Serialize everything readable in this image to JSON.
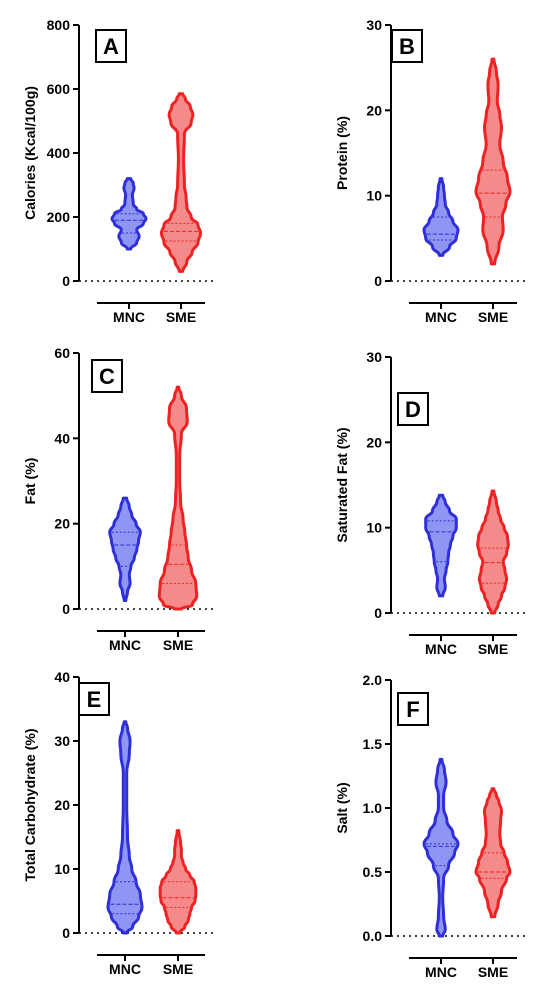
{
  "chart_data": [
    {
      "type": "violin",
      "panel_letter": "A",
      "ylabel": "Calories (Kcal/100g)",
      "ylim": [
        0,
        800
      ],
      "yticks": [
        "0",
        "200",
        "400",
        "600",
        "800"
      ],
      "categories": [
        "MNC",
        "SME"
      ],
      "series": [
        {
          "category": "MNC",
          "color": "#2f2fd8",
          "min": 100,
          "max": 320,
          "median": 190,
          "q1": 150,
          "q3": 210,
          "profile": [
            [
              100,
              2
            ],
            [
              120,
              9
            ],
            [
              140,
              12
            ],
            [
              160,
              9
            ],
            [
              180,
              17
            ],
            [
              195,
              20
            ],
            [
              210,
              17
            ],
            [
              225,
              9
            ],
            [
              240,
              5
            ],
            [
              270,
              4
            ],
            [
              290,
              6
            ],
            [
              305,
              5
            ],
            [
              320,
              2
            ]
          ]
        },
        {
          "category": "SME",
          "color": "#ee2222",
          "min": 30,
          "max": 585,
          "median": 155,
          "q1": 125,
          "q3": 180,
          "profile": [
            [
              30,
              2
            ],
            [
              60,
              7
            ],
            [
              90,
              13
            ],
            [
              120,
              20
            ],
            [
              150,
              23
            ],
            [
              175,
              20
            ],
            [
              200,
              12
            ],
            [
              230,
              7
            ],
            [
              260,
              6
            ],
            [
              300,
              4
            ],
            [
              380,
              3
            ],
            [
              460,
              4
            ],
            [
              495,
              12
            ],
            [
              520,
              14
            ],
            [
              545,
              11
            ],
            [
              570,
              5
            ],
            [
              585,
              2
            ]
          ]
        }
      ]
    },
    {
      "type": "violin",
      "panel_letter": "B",
      "ylabel": "Protein (%)",
      "ylim": [
        0,
        30
      ],
      "yticks": [
        "0",
        "10",
        "20",
        "30"
      ],
      "categories": [
        "MNC",
        "SME"
      ],
      "series": [
        {
          "category": "MNC",
          "color": "#2f2fd8",
          "min": 3,
          "max": 12,
          "median": 5.5,
          "q1": 4.8,
          "q3": 7.5,
          "profile": [
            [
              3,
              2
            ],
            [
              4,
              10
            ],
            [
              5,
              18
            ],
            [
              6,
              20
            ],
            [
              7,
              14
            ],
            [
              8,
              9
            ],
            [
              9,
              5
            ],
            [
              10,
              4
            ],
            [
              11,
              3
            ],
            [
              12,
              1
            ]
          ]
        },
        {
          "category": "SME",
          "color": "#ee2222",
          "min": 2,
          "max": 26,
          "median": 10.3,
          "q1": 7.5,
          "q3": 13,
          "profile": [
            [
              2,
              2
            ],
            [
              4,
              7
            ],
            [
              6,
              12
            ],
            [
              7.5,
              11
            ],
            [
              9,
              15
            ],
            [
              10.5,
              20
            ],
            [
              12,
              17
            ],
            [
              14,
              12
            ],
            [
              16,
              8
            ],
            [
              18,
              10
            ],
            [
              19.5,
              8
            ],
            [
              21,
              5
            ],
            [
              23,
              6
            ],
            [
              24.5,
              4
            ],
            [
              26,
              1
            ]
          ]
        }
      ]
    },
    {
      "type": "violin",
      "panel_letter": "C",
      "ylabel": "Fat (%)",
      "ylim": [
        0,
        60
      ],
      "yticks": [
        "0",
        "20",
        "40",
        "60"
      ],
      "categories": [
        "MNC",
        "SME"
      ],
      "series": [
        {
          "category": "MNC",
          "color": "#2f2fd8",
          "min": 2,
          "max": 26,
          "median": 15,
          "q1": 10,
          "q3": 18,
          "profile": [
            [
              2,
              1
            ],
            [
              4,
              3
            ],
            [
              6,
              6
            ],
            [
              8,
              5
            ],
            [
              10,
              7
            ],
            [
              12,
              11
            ],
            [
              14,
              14
            ],
            [
              16,
              16
            ],
            [
              18,
              18
            ],
            [
              20,
              13
            ],
            [
              22,
              8
            ],
            [
              24,
              5
            ],
            [
              26,
              2
            ]
          ]
        },
        {
          "category": "SME",
          "color": "#ee2222",
          "min": 0,
          "max": 52,
          "median": 10.5,
          "q1": 6,
          "q3": 15,
          "profile": [
            [
              0,
              4
            ],
            [
              1,
              17
            ],
            [
              3,
              22
            ],
            [
              6,
              21
            ],
            [
              9,
              16
            ],
            [
              12,
              12
            ],
            [
              15,
              10
            ],
            [
              18,
              8
            ],
            [
              21,
              6
            ],
            [
              25,
              3
            ],
            [
              30,
              2
            ],
            [
              36,
              2
            ],
            [
              41,
              4
            ],
            [
              44,
              11
            ],
            [
              47,
              10
            ],
            [
              50,
              4
            ],
            [
              52,
              1
            ]
          ]
        }
      ]
    },
    {
      "type": "violin",
      "panel_letter": "D",
      "ylabel": "Saturated Fat (%)",
      "ylim": [
        0,
        30
      ],
      "yticks": [
        "0",
        "10",
        "20",
        "30"
      ],
      "categories": [
        "MNC",
        "SME"
      ],
      "series": [
        {
          "category": "MNC",
          "color": "#2f2fd8",
          "min": 2,
          "max": 13.8,
          "median": 9.5,
          "q1": 6,
          "q3": 10.8,
          "profile": [
            [
              2,
              2
            ],
            [
              3,
              5
            ],
            [
              4,
              4
            ],
            [
              5,
              6
            ],
            [
              6,
              8
            ],
            [
              7,
              9
            ],
            [
              8,
              11
            ],
            [
              9,
              14
            ],
            [
              10,
              18
            ],
            [
              11,
              18
            ],
            [
              12,
              10
            ],
            [
              13,
              5
            ],
            [
              13.8,
              2
            ]
          ]
        },
        {
          "category": "SME",
          "color": "#ee2222",
          "min": 0,
          "max": 14.3,
          "median": 5.9,
          "q1": 3.5,
          "q3": 7.6,
          "profile": [
            [
              0,
              2
            ],
            [
              1,
              6
            ],
            [
              2,
              10
            ],
            [
              3,
              14
            ],
            [
              4,
              16
            ],
            [
              5,
              14
            ],
            [
              6,
              12
            ],
            [
              7,
              16
            ],
            [
              8,
              18
            ],
            [
              9,
              17
            ],
            [
              10,
              13
            ],
            [
              11,
              9
            ],
            [
              12,
              6
            ],
            [
              13,
              4
            ],
            [
              14.3,
              1
            ]
          ]
        }
      ]
    },
    {
      "type": "violin",
      "panel_letter": "E",
      "ylabel": "Total Carbohydrate (%)",
      "ylim": [
        0,
        40
      ],
      "yticks": [
        "0",
        "10",
        "20",
        "30",
        "40"
      ],
      "categories": [
        "MNC",
        "SME"
      ],
      "series": [
        {
          "category": "MNC",
          "color": "#2f2fd8",
          "min": 0,
          "max": 33,
          "median": 4.5,
          "q1": 3,
          "q3": 8,
          "profile": [
            [
              0,
              2
            ],
            [
              1,
              9
            ],
            [
              2.5,
              16
            ],
            [
              4,
              20
            ],
            [
              6,
              18
            ],
            [
              8,
              13
            ],
            [
              10,
              8
            ],
            [
              12,
              5
            ],
            [
              15,
              3
            ],
            [
              20,
              2
            ],
            [
              25,
              2
            ],
            [
              28,
              5
            ],
            [
              30,
              6
            ],
            [
              32,
              3
            ],
            [
              33,
              1
            ]
          ]
        },
        {
          "category": "SME",
          "color": "#ee2222",
          "min": 0,
          "max": 16,
          "median": 5.5,
          "q1": 4,
          "q3": 8,
          "profile": [
            [
              0,
              2
            ],
            [
              1,
              8
            ],
            [
              2,
              12
            ],
            [
              3,
              14
            ],
            [
              4,
              16
            ],
            [
              5,
              20
            ],
            [
              6,
              21
            ],
            [
              7,
              21
            ],
            [
              8,
              19
            ],
            [
              9,
              14
            ],
            [
              10,
              9
            ],
            [
              11,
              6
            ],
            [
              12,
              4
            ],
            [
              13,
              4
            ],
            [
              14,
              3
            ],
            [
              16,
              1
            ]
          ]
        }
      ]
    },
    {
      "type": "violin",
      "panel_letter": "F",
      "ylabel": "Salt (%)",
      "ylim": [
        0,
        2.0
      ],
      "yticks": [
        "0.0",
        "0.5",
        "1.0",
        "1.5",
        "2.0"
      ],
      "categories": [
        "MNC",
        "SME"
      ],
      "series": [
        {
          "category": "MNC",
          "color": "#2f2fd8",
          "min": 0,
          "max": 1.38,
          "median": 0.7,
          "q1": 0.55,
          "q3": 0.72,
          "profile": [
            [
              0,
              2
            ],
            [
              0.05,
              5
            ],
            [
              0.15,
              3
            ],
            [
              0.3,
              2
            ],
            [
              0.45,
              3
            ],
            [
              0.55,
              9
            ],
            [
              0.65,
              16
            ],
            [
              0.72,
              20
            ],
            [
              0.8,
              14
            ],
            [
              0.9,
              7
            ],
            [
              1.0,
              3
            ],
            [
              1.1,
              3
            ],
            [
              1.2,
              6
            ],
            [
              1.3,
              4
            ],
            [
              1.38,
              1
            ]
          ]
        },
        {
          "category": "SME",
          "color": "#ee2222",
          "min": 0.15,
          "max": 1.15,
          "median": 0.5,
          "q1": 0.45,
          "q3": 0.65,
          "profile": [
            [
              0.15,
              2
            ],
            [
              0.25,
              6
            ],
            [
              0.35,
              10
            ],
            [
              0.45,
              16
            ],
            [
              0.5,
              20
            ],
            [
              0.58,
              17
            ],
            [
              0.65,
              13
            ],
            [
              0.72,
              9
            ],
            [
              0.8,
              8
            ],
            [
              0.9,
              9
            ],
            [
              0.98,
              10
            ],
            [
              1.05,
              7
            ],
            [
              1.1,
              4
            ],
            [
              1.15,
              1
            ]
          ]
        }
      ]
    }
  ]
}
